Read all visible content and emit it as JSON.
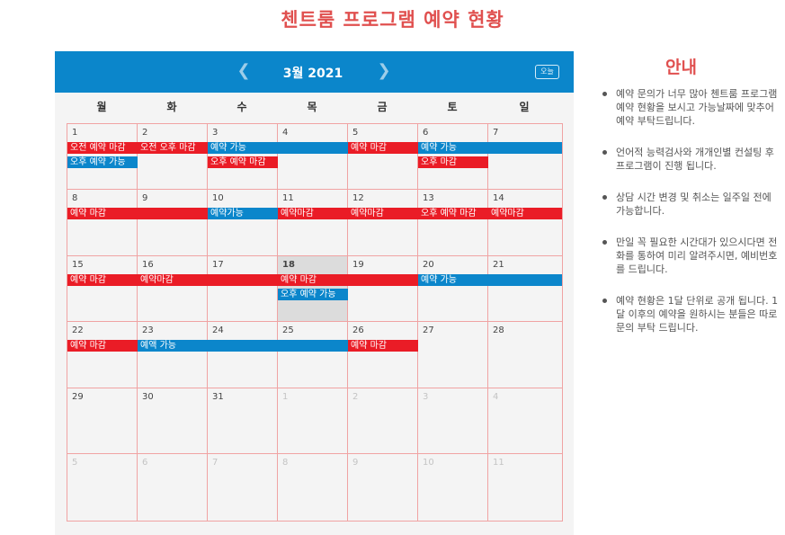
{
  "page_title": "첸트룸 프로그램 예약 현황",
  "calendar": {
    "month_label": "3월 2021",
    "today_label": "오늘",
    "prev_icon": "chevron-left-icon",
    "next_icon": "chevron-right-icon",
    "weekdays": [
      "월",
      "화",
      "수",
      "목",
      "금",
      "토",
      "일"
    ],
    "weeks": [
      [
        {
          "n": "1"
        },
        {
          "n": "2"
        },
        {
          "n": "3"
        },
        {
          "n": "4"
        },
        {
          "n": "5"
        },
        {
          "n": "6"
        },
        {
          "n": "7"
        }
      ],
      [
        {
          "n": "8"
        },
        {
          "n": "9"
        },
        {
          "n": "10"
        },
        {
          "n": "11"
        },
        {
          "n": "12"
        },
        {
          "n": "13"
        },
        {
          "n": "14"
        }
      ],
      [
        {
          "n": "15"
        },
        {
          "n": "16"
        },
        {
          "n": "17"
        },
        {
          "n": "18",
          "today": true
        },
        {
          "n": "19"
        },
        {
          "n": "20"
        },
        {
          "n": "21"
        }
      ],
      [
        {
          "n": "22"
        },
        {
          "n": "23"
        },
        {
          "n": "24"
        },
        {
          "n": "25"
        },
        {
          "n": "26"
        },
        {
          "n": "27"
        },
        {
          "n": "28"
        }
      ],
      [
        {
          "n": "29"
        },
        {
          "n": "30"
        },
        {
          "n": "31"
        },
        {
          "n": "1",
          "other": true
        },
        {
          "n": "2",
          "other": true
        },
        {
          "n": "3",
          "other": true
        },
        {
          "n": "4",
          "other": true
        }
      ],
      [
        {
          "n": "5",
          "other": true
        },
        {
          "n": "6",
          "other": true
        },
        {
          "n": "7",
          "other": true
        },
        {
          "n": "8",
          "other": true
        },
        {
          "n": "9",
          "other": true
        },
        {
          "n": "10",
          "other": true
        },
        {
          "n": "11",
          "other": true
        }
      ]
    ],
    "events": [
      {
        "week": 0,
        "start": 0,
        "span": 1,
        "row": 0,
        "color": "red",
        "title": "오전 예약 마감"
      },
      {
        "week": 0,
        "start": 1,
        "span": 1,
        "row": 0,
        "color": "red",
        "title": "오전 오후 마감"
      },
      {
        "week": 0,
        "start": 2,
        "span": 2,
        "row": 0,
        "color": "blue",
        "title": "예약 가능"
      },
      {
        "week": 0,
        "start": 4,
        "span": 1,
        "row": 0,
        "color": "red",
        "title": "예약 마감"
      },
      {
        "week": 0,
        "start": 5,
        "span": 2,
        "row": 0,
        "color": "blue",
        "title": "예약 가능"
      },
      {
        "week": 0,
        "start": 0,
        "span": 1,
        "row": 1,
        "color": "blue",
        "title": "오후 예약 가능"
      },
      {
        "week": 0,
        "start": 2,
        "span": 1,
        "row": 1,
        "color": "red",
        "title": "오후 예약 마감"
      },
      {
        "week": 0,
        "start": 5,
        "span": 1,
        "row": 1,
        "color": "red",
        "title": "오후 마감"
      },
      {
        "week": 1,
        "start": 0,
        "span": 2,
        "row": 0,
        "color": "red",
        "title": "예약 마감"
      },
      {
        "week": 1,
        "start": 2,
        "span": 1,
        "row": 0,
        "color": "blue",
        "title": "예약가능"
      },
      {
        "week": 1,
        "start": 3,
        "span": 1,
        "row": 0,
        "color": "red",
        "title": "예약마감"
      },
      {
        "week": 1,
        "start": 4,
        "span": 1,
        "row": 0,
        "color": "red",
        "title": "예약마감"
      },
      {
        "week": 1,
        "start": 5,
        "span": 1,
        "row": 0,
        "color": "red",
        "title": "오후 예약 마감"
      },
      {
        "week": 1,
        "start": 6,
        "span": 1,
        "row": 0,
        "color": "red",
        "title": "예약마감"
      },
      {
        "week": 2,
        "start": 0,
        "span": 1,
        "row": 0,
        "color": "red",
        "title": "예약 마감"
      },
      {
        "week": 2,
        "start": 1,
        "span": 2,
        "row": 0,
        "color": "red",
        "title": "예약마감"
      },
      {
        "week": 2,
        "start": 3,
        "span": 2,
        "row": 0,
        "color": "red",
        "title": "예약 마감"
      },
      {
        "week": 2,
        "start": 5,
        "span": 2,
        "row": 0,
        "color": "blue",
        "title": "예약 가능"
      },
      {
        "week": 2,
        "start": 3,
        "span": 1,
        "row": 1,
        "color": "blue",
        "title": "오후 예약 가능"
      },
      {
        "week": 3,
        "start": 0,
        "span": 1,
        "row": 0,
        "color": "red",
        "title": "예약 마감"
      },
      {
        "week": 3,
        "start": 1,
        "span": 3,
        "row": 0,
        "color": "blue",
        "title": "예액 가능"
      },
      {
        "week": 3,
        "start": 4,
        "span": 1,
        "row": 0,
        "color": "red",
        "title": "예약 마감"
      }
    ]
  },
  "notice": {
    "title": "안내",
    "items": [
      "예약 문의가 너무 많아 첸트룸 프로그램 예약 현황을 보시고 가능날짜에 맞추어 예약 부탁드립니다.",
      "언어적 능력검사와 개개인별 컨설팅 후 프로그램이 진행 됩니다.",
      "상담 시간 변경 및 취소는 일주일 전에 가능합니다.",
      "만일 꼭 필요한 시간대가 있으시다면 전화를 통하여 미리 알려주시면, 예비번호를 드립니다.",
      "예약 현황은 1달 단위로 공개 됩니다. 1달 이후의 예약을 원하시는 분들은 따로 문의 부탁 드립니다."
    ]
  },
  "colors": {
    "header_blue": "#0b86cb",
    "event_red": "#ea1c26",
    "event_blue": "#0b86cb",
    "title_red": "#e0504f"
  }
}
